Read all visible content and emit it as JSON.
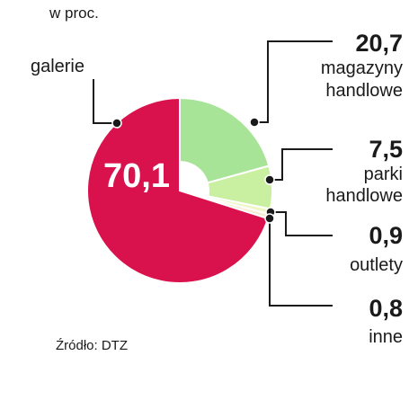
{
  "chart_data": {
    "type": "pie",
    "title": "w proc.",
    "source": "Źródło: DTZ",
    "slices": [
      {
        "label": "galerie",
        "label_lines": [
          "galerie"
        ],
        "value": 70.1,
        "value_text": "70,1",
        "color": "#d9114d"
      },
      {
        "label": "magazyny handlowe",
        "label_lines": [
          "magazyny",
          "handlowe"
        ],
        "value": 20.7,
        "value_text": "20,7",
        "color": "#a8e497"
      },
      {
        "label": "parki handlowe",
        "label_lines": [
          "parki",
          "handlowe"
        ],
        "value": 7.5,
        "value_text": "7,5",
        "color": "#c9f0a0"
      },
      {
        "label": "outlety",
        "label_lines": [
          "outlety"
        ],
        "value": 0.9,
        "value_text": "0,9",
        "color": "#eef6c4"
      },
      {
        "label": "inne",
        "label_lines": [
          "inne"
        ],
        "value": 0.8,
        "value_text": "0,8",
        "color": "#f6eed2"
      }
    ]
  }
}
